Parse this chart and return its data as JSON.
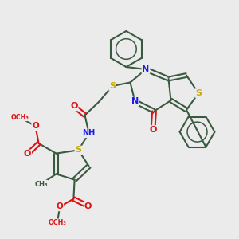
{
  "bg": "#ebebeb",
  "bond": "#3a5a40",
  "N": "#1a1aee",
  "S": "#ccaa00",
  "O": "#dd1111",
  "C": "#3a5a40",
  "figsize": [
    3.0,
    3.0
  ],
  "dpi": 100,
  "xlim": [
    0,
    10
  ],
  "ylim": [
    0,
    10
  ]
}
